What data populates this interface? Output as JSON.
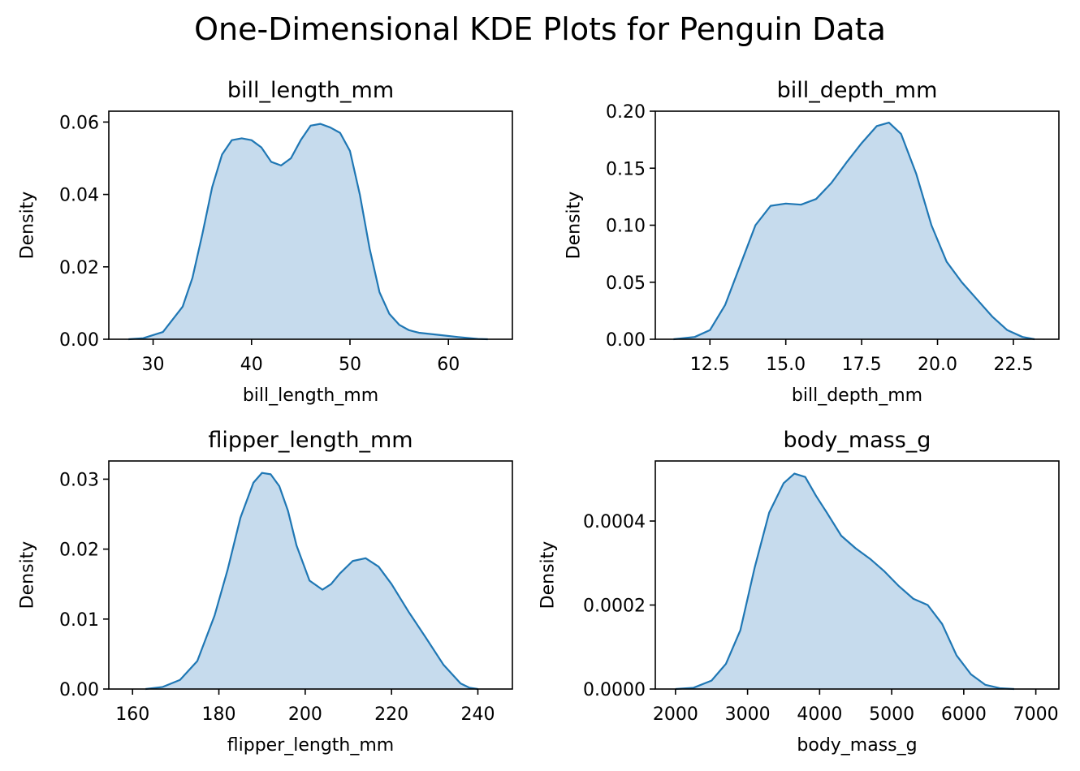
{
  "suptitle": "One-Dimensional KDE Plots for Penguin Data",
  "style": {
    "line_color": "#1f77b4",
    "fill_color": "#c6dbed",
    "fill_opacity": 1
  },
  "chart_data": [
    {
      "type": "area",
      "title": "bill_length_mm",
      "xlabel": "bill_length_mm",
      "ylabel": "Density",
      "xlim": [
        25.5,
        66.5
      ],
      "ylim": [
        0,
        0.063
      ],
      "xticks": [
        30,
        40,
        50,
        60
      ],
      "xtick_labels": [
        "30",
        "40",
        "50",
        "60"
      ],
      "yticks": [
        0,
        0.02,
        0.04,
        0.06
      ],
      "ytick_labels": [
        "0.00",
        "0.02",
        "0.04",
        "0.06"
      ],
      "x": [
        27.5,
        29.0,
        31.0,
        33.0,
        34.0,
        35.0,
        36.0,
        37.0,
        38.0,
        39.0,
        40.0,
        41.0,
        42.0,
        43.0,
        44.0,
        45.0,
        46.0,
        47.0,
        48.0,
        49.0,
        50.0,
        51.0,
        52.0,
        53.0,
        54.0,
        55.0,
        56.0,
        57.0,
        59.0,
        61.0,
        63.0,
        64.0
      ],
      "y": [
        0.0,
        0.0003,
        0.002,
        0.009,
        0.017,
        0.029,
        0.042,
        0.051,
        0.055,
        0.0555,
        0.055,
        0.053,
        0.049,
        0.048,
        0.05,
        0.055,
        0.059,
        0.0595,
        0.0585,
        0.057,
        0.052,
        0.04,
        0.025,
        0.013,
        0.007,
        0.004,
        0.0025,
        0.0018,
        0.0012,
        0.0006,
        0.0001,
        0.0
      ]
    },
    {
      "type": "area",
      "title": "bill_depth_mm",
      "xlabel": "bill_depth_mm",
      "ylabel": "Density",
      "xlim": [
        10.7,
        24.0
      ],
      "ylim": [
        0,
        0.2
      ],
      "xticks": [
        12.5,
        15.0,
        17.5,
        20.0,
        22.5
      ],
      "xtick_labels": [
        "12.5",
        "15.0",
        "17.5",
        "20.0",
        "22.5"
      ],
      "yticks": [
        0,
        0.05,
        0.1,
        0.15,
        0.2
      ],
      "ytick_labels": [
        "0.00",
        "0.05",
        "0.10",
        "0.15",
        "0.20"
      ],
      "x": [
        11.3,
        12.0,
        12.5,
        13.0,
        13.5,
        14.0,
        14.5,
        15.0,
        15.5,
        16.0,
        16.5,
        17.0,
        17.5,
        18.0,
        18.4,
        18.8,
        19.3,
        19.8,
        20.3,
        20.8,
        21.3,
        21.8,
        22.3,
        22.8,
        23.2
      ],
      "y": [
        0.0,
        0.002,
        0.008,
        0.03,
        0.065,
        0.1,
        0.117,
        0.119,
        0.118,
        0.123,
        0.137,
        0.155,
        0.172,
        0.187,
        0.19,
        0.18,
        0.145,
        0.1,
        0.068,
        0.05,
        0.035,
        0.02,
        0.008,
        0.002,
        0.0
      ]
    },
    {
      "type": "area",
      "title": "flipper_length_mm",
      "xlabel": "flipper_length_mm",
      "ylabel": "Density",
      "xlim": [
        154.5,
        248.0
      ],
      "ylim": [
        0,
        0.0326
      ],
      "xticks": [
        160,
        180,
        200,
        220,
        240
      ],
      "xtick_labels": [
        "160",
        "180",
        "200",
        "220",
        "240"
      ],
      "yticks": [
        0,
        0.01,
        0.02,
        0.03
      ],
      "ytick_labels": [
        "0.00",
        "0.01",
        "0.02",
        "0.03"
      ],
      "x": [
        163,
        167,
        171,
        175,
        179,
        182,
        185,
        188,
        190,
        192,
        194,
        196,
        198,
        201,
        204,
        206,
        208,
        211,
        214,
        217,
        220,
        224,
        228,
        232,
        236,
        238,
        240
      ],
      "y": [
        0.0,
        0.0003,
        0.0013,
        0.004,
        0.0105,
        0.017,
        0.0245,
        0.0295,
        0.0309,
        0.0307,
        0.029,
        0.0255,
        0.0205,
        0.0155,
        0.0142,
        0.015,
        0.0165,
        0.0183,
        0.0187,
        0.0175,
        0.015,
        0.011,
        0.0073,
        0.0035,
        0.0008,
        0.0002,
        0.0
      ]
    },
    {
      "type": "area",
      "title": "body_mass_g",
      "xlabel": "body_mass_g",
      "ylabel": "Density",
      "xlim": [
        1720,
        7320
      ],
      "ylim": [
        0,
        0.000543
      ],
      "xticks": [
        2000,
        3000,
        4000,
        5000,
        6000,
        7000
      ],
      "xtick_labels": [
        "2000",
        "3000",
        "4000",
        "5000",
        "6000",
        "7000"
      ],
      "yticks": [
        0,
        0.0002,
        0.0004
      ],
      "ytick_labels": [
        "0.0000",
        "0.0002",
        "0.0004"
      ],
      "x": [
        2000,
        2250,
        2500,
        2700,
        2900,
        3100,
        3300,
        3500,
        3650,
        3800,
        3950,
        4100,
        4300,
        4500,
        4700,
        4900,
        5100,
        5300,
        5500,
        5700,
        5900,
        6100,
        6300,
        6500,
        6700
      ],
      "y": [
        0.0,
        3e-06,
        2e-05,
        6e-05,
        0.00014,
        0.00029,
        0.00042,
        0.00049,
        0.000513,
        0.000505,
        0.00046,
        0.00042,
        0.000365,
        0.000335,
        0.00031,
        0.00028,
        0.000245,
        0.000215,
        0.0002,
        0.000155,
        8e-05,
        3.5e-05,
        1e-05,
        2e-06,
        0.0
      ]
    }
  ]
}
